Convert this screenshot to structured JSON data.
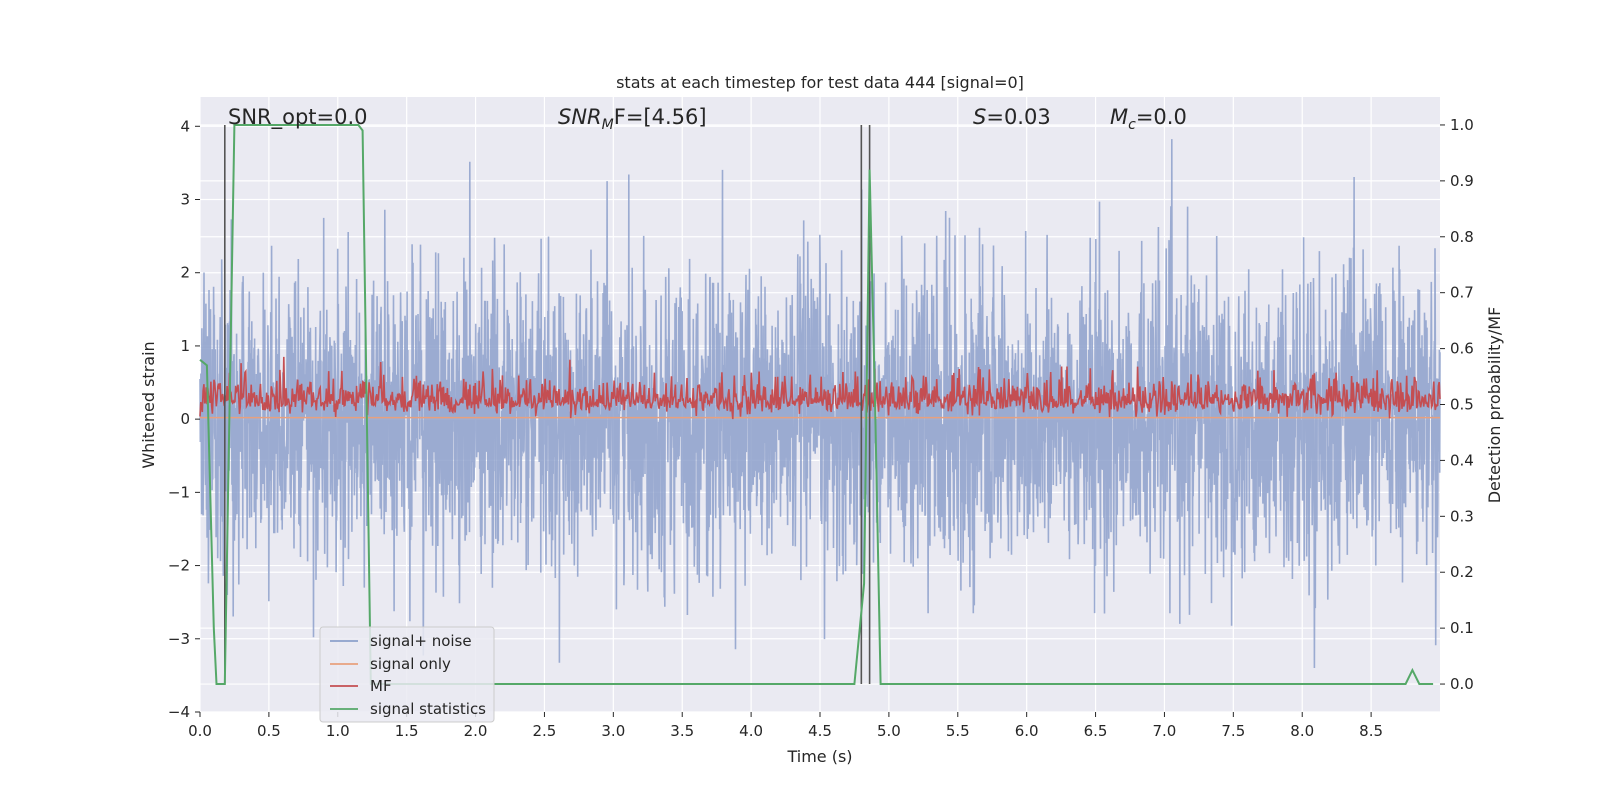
{
  "chart_data": {
    "type": "line",
    "title": "stats at each timestep for test data 444 [signal=0]",
    "xlabel": "Time (s)",
    "ylabel_left": "Whitened strain",
    "ylabel_right": "Detection probability/MF",
    "xlim": [
      0.0,
      9.0
    ],
    "ylim_left": [
      -4.0,
      4.4
    ],
    "ylim_right": [
      -0.05,
      1.05
    ],
    "xticks": [
      "0.0",
      "0.5",
      "1.0",
      "1.5",
      "2.0",
      "2.5",
      "3.0",
      "3.5",
      "4.0",
      "4.5",
      "5.0",
      "5.5",
      "6.0",
      "6.5",
      "7.0",
      "7.5",
      "8.0",
      "8.5"
    ],
    "yticks_left": [
      "−4",
      "−3",
      "−2",
      "−1",
      "0",
      "1",
      "2",
      "3",
      "4"
    ],
    "yticks_right": [
      "0.0",
      "0.1",
      "0.2",
      "0.3",
      "0.4",
      "0.5",
      "0.6",
      "0.7",
      "0.8",
      "0.9",
      "1.0"
    ],
    "grid": true,
    "legend_position": "lower-left",
    "annotations": {
      "snr_opt": "SNR_opt=0.0",
      "snr_mf_sym": "SNR",
      "snr_mf_sub": "M",
      "snr_mf_rest": "F=[4.56]",
      "s_sym": "S",
      "s_rest": "=0.03",
      "mc_sym": "M",
      "mc_sub": "c",
      "mc_rest": "=0.0"
    },
    "vertical_markers_x": [
      0.18,
      4.8,
      4.86
    ],
    "series": [
      {
        "name": "signal+ noise",
        "color": "#8da0cb",
        "axis": "left",
        "description_values": {
          "mean": 0.0,
          "std": 1.0,
          "max_abs": 3.9
        }
      },
      {
        "name": "signal only",
        "color": "#e8a07e",
        "axis": "left",
        "values_x": [
          0.0,
          9.0
        ],
        "values_y": [
          0.02,
          0.02
        ]
      },
      {
        "name": "MF",
        "color": "#c44e52",
        "axis": "left",
        "description_values": {
          "baseline": 0.25,
          "max": 0.85,
          "min": 0.0
        }
      },
      {
        "name": "signal statistics",
        "color": "#55a868",
        "axis": "right",
        "x": [
          0.0,
          0.05,
          0.1,
          0.12,
          0.18,
          0.25,
          1.15,
          1.18,
          1.24,
          4.75,
          4.82,
          4.86,
          4.9,
          4.94,
          8.75,
          8.8,
          8.85,
          8.95
        ],
        "y": [
          0.58,
          0.57,
          0.1,
          0.0,
          0.0,
          1.0,
          1.0,
          0.99,
          0.0,
          0.0,
          0.18,
          0.92,
          0.5,
          0.0,
          0.0,
          0.025,
          0.0,
          0.0
        ]
      }
    ]
  }
}
